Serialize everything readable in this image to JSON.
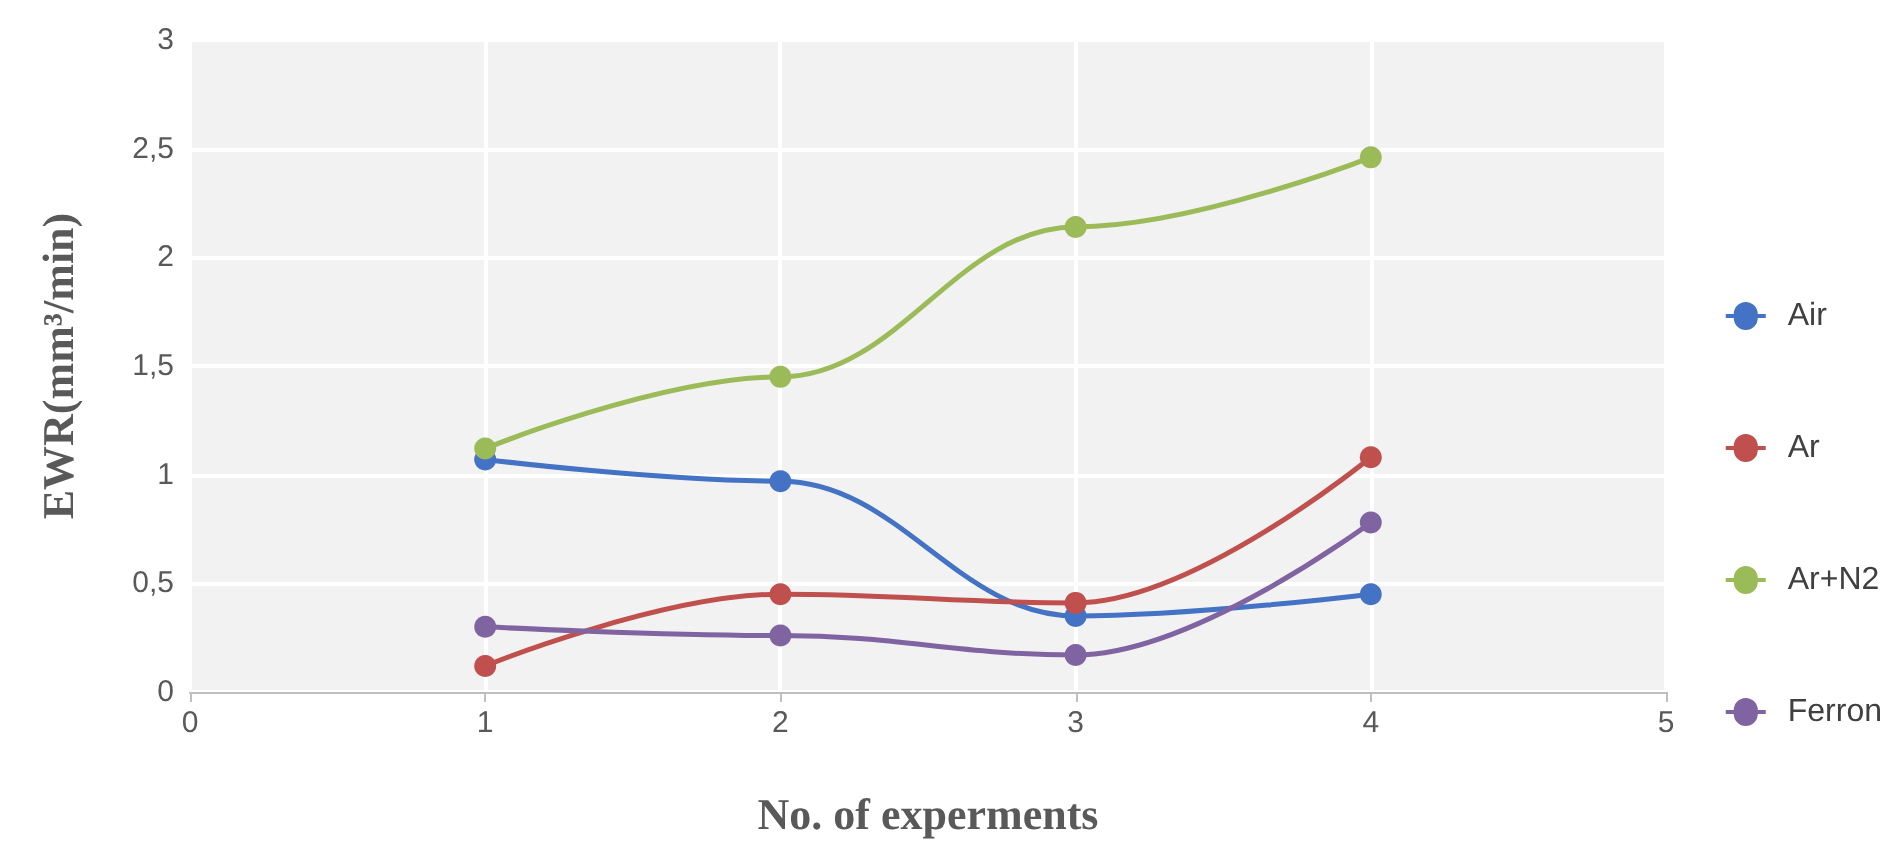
{
  "chart_data": {
    "type": "line",
    "xlabel": "No. of experments",
    "ylabel": "EWR(mm³/min)",
    "x": [
      1,
      2,
      3,
      4
    ],
    "series": [
      {
        "name": "Air",
        "color": "#4472c4",
        "values": [
          1.07,
          0.97,
          0.35,
          0.45
        ]
      },
      {
        "name": "Ar",
        "color": "#c0504d",
        "values": [
          0.12,
          0.45,
          0.41,
          1.08
        ]
      },
      {
        "name": "Ar+N2",
        "color": "#9bbb59",
        "values": [
          1.12,
          1.45,
          2.14,
          2.46
        ]
      },
      {
        "name": "Ferron",
        "color": "#8064a2",
        "values": [
          0.3,
          0.26,
          0.17,
          0.78
        ]
      }
    ],
    "xlim": [
      0,
      5
    ],
    "xticks": [
      0,
      1,
      2,
      3,
      4,
      5
    ],
    "ylim": [
      0,
      3
    ],
    "yticks": [
      0,
      {
        "value": 0.5,
        "label": "0,5"
      },
      1,
      {
        "value": 1.5,
        "label": "1,5"
      },
      2,
      {
        "value": 2.5,
        "label": "2,5"
      },
      3
    ],
    "grid": true,
    "legend": "right",
    "marker": "circle",
    "line_style": "solid"
  }
}
